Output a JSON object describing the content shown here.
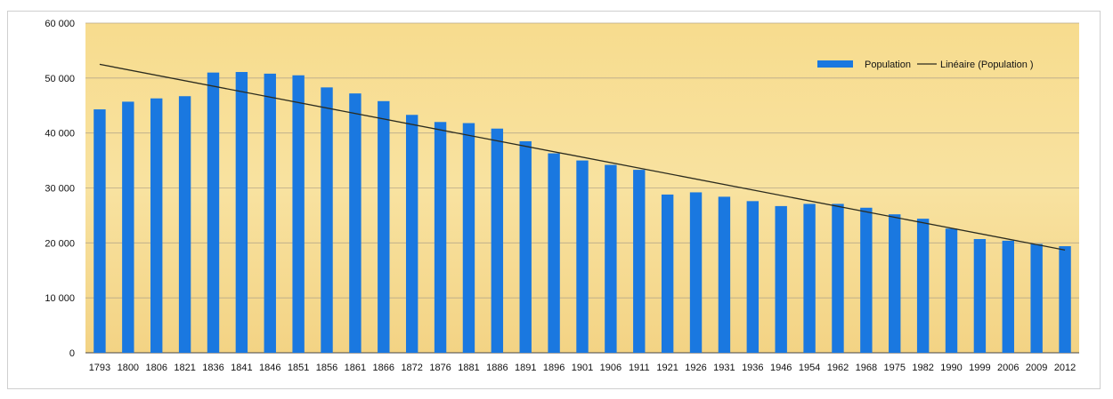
{
  "chart_data": {
    "type": "bar",
    "categories": [
      "1793",
      "1800",
      "1806",
      "1821",
      "1836",
      "1841",
      "1846",
      "1851",
      "1856",
      "1861",
      "1866",
      "1872",
      "1876",
      "1881",
      "1886",
      "1891",
      "1896",
      "1901",
      "1906",
      "1911",
      "1921",
      "1926",
      "1931",
      "1936",
      "1946",
      "1954",
      "1962",
      "1968",
      "1975",
      "1982",
      "1990",
      "1999",
      "2006",
      "2009",
      "2012"
    ],
    "series": [
      {
        "name": "Population",
        "values": [
          44300,
          45700,
          46300,
          46700,
          51000,
          51100,
          50800,
          50500,
          48300,
          47200,
          45800,
          43300,
          42000,
          41800,
          40800,
          38500,
          36300,
          35000,
          34200,
          33300,
          28800,
          29200,
          28400,
          27600,
          26700,
          27100,
          27100,
          26400,
          25200,
          24400,
          22600,
          20700,
          20400,
          19800,
          19400
        ]
      }
    ],
    "trendline": {
      "name": "Linéaire (Population )",
      "start": 52500,
      "end": 18700
    },
    "ylim": [
      0,
      60000
    ],
    "yticks": [
      0,
      10000,
      20000,
      30000,
      40000,
      50000,
      60000
    ],
    "ytick_labels": [
      "0",
      "10 000",
      "20 000",
      "30 000",
      "40 000",
      "50 000",
      "60 000"
    ],
    "grid": true,
    "legend": "top-right",
    "colors": {
      "bar": "#1a78e0",
      "trend": "#2b2b1e",
      "background": "#f5d98c",
      "grid": "#b8a98a"
    }
  }
}
